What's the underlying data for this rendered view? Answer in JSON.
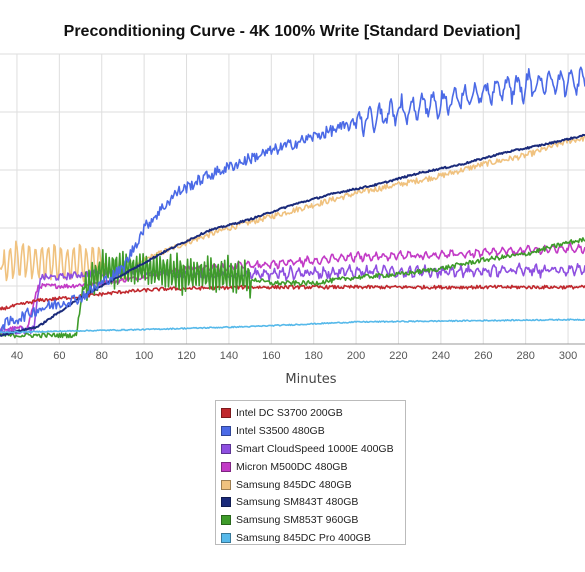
{
  "chart_data": {
    "type": "line",
    "title": "Preconditioning Curve - 4K 100% Write [Standard Deviation]",
    "xlabel": "Minutes",
    "ylabel": "",
    "xlim": [
      32,
      308
    ],
    "ylim": [
      0,
      5
    ],
    "x_ticks": [
      40,
      60,
      80,
      100,
      120,
      140,
      160,
      180,
      200,
      220,
      240,
      260,
      280,
      300
    ],
    "grid": true,
    "legend_position": "bottom",
    "series": [
      {
        "name": "Intel DC S3700 200GB",
        "color": "#c0282d",
        "points": [
          [
            32,
            0.6
          ],
          [
            50,
            0.75
          ],
          [
            70,
            0.82
          ],
          [
            90,
            0.9
          ],
          [
            110,
            0.95
          ],
          [
            150,
            0.98
          ],
          [
            200,
            0.98
          ],
          [
            250,
            0.98
          ],
          [
            300,
            0.98
          ],
          [
            308,
            0.98
          ]
        ]
      },
      {
        "name": "Intel S3500 480GB",
        "color": "#4b6ae6",
        "points": [
          [
            32,
            0.3
          ],
          [
            50,
            0.6
          ],
          [
            70,
            0.8
          ],
          [
            90,
            1.3
          ],
          [
            100,
            2.0
          ],
          [
            115,
            2.6
          ],
          [
            130,
            2.9
          ],
          [
            150,
            3.2
          ],
          [
            170,
            3.45
          ],
          [
            190,
            3.7
          ],
          [
            210,
            3.9
          ],
          [
            230,
            4.1
          ],
          [
            250,
            4.25
          ],
          [
            270,
            4.4
          ],
          [
            290,
            4.5
          ],
          [
            308,
            4.55
          ]
        ]
      },
      {
        "name": "Smart CloudSpeed 1000E 400GB",
        "color": "#8e4fe0",
        "points": [
          [
            32,
            0.2
          ],
          [
            48,
            0.25
          ],
          [
            51,
            1.15
          ],
          [
            60,
            1.15
          ],
          [
            70,
            1.2
          ],
          [
            90,
            1.25
          ],
          [
            120,
            1.2
          ],
          [
            150,
            1.2
          ],
          [
            200,
            1.25
          ],
          [
            250,
            1.25
          ],
          [
            300,
            1.28
          ],
          [
            308,
            1.3
          ]
        ]
      },
      {
        "name": "Micron M500DC 480GB",
        "color": "#c23ac6",
        "points": [
          [
            32,
            0.25
          ],
          [
            45,
            0.28
          ],
          [
            50,
            1.0
          ],
          [
            65,
            1.0
          ],
          [
            90,
            1.1
          ],
          [
            120,
            1.3
          ],
          [
            150,
            1.35
          ],
          [
            200,
            1.5
          ],
          [
            250,
            1.55
          ],
          [
            300,
            1.65
          ],
          [
            308,
            1.65
          ]
        ]
      },
      {
        "name": "Samsung 845DC 480GB",
        "color": "#f0c27f",
        "points": [
          [
            32,
            1.3
          ],
          [
            40,
            1.45
          ],
          [
            60,
            1.4
          ],
          [
            80,
            1.4
          ],
          [
            90,
            1.1
          ],
          [
            100,
            1.45
          ],
          [
            120,
            1.75
          ],
          [
            140,
            2.0
          ],
          [
            160,
            2.2
          ],
          [
            180,
            2.4
          ],
          [
            200,
            2.6
          ],
          [
            220,
            2.75
          ],
          [
            240,
            2.9
          ],
          [
            260,
            3.1
          ],
          [
            280,
            3.25
          ],
          [
            300,
            3.5
          ],
          [
            308,
            3.55
          ]
        ]
      },
      {
        "name": "Samsung SM843T 480GB",
        "color": "#1a2a7a",
        "points": [
          [
            32,
            0.15
          ],
          [
            50,
            0.3
          ],
          [
            70,
            0.8
          ],
          [
            90,
            1.2
          ],
          [
            110,
            1.6
          ],
          [
            130,
            1.95
          ],
          [
            150,
            2.15
          ],
          [
            170,
            2.4
          ],
          [
            190,
            2.6
          ],
          [
            210,
            2.75
          ],
          [
            230,
            2.95
          ],
          [
            250,
            3.1
          ],
          [
            270,
            3.3
          ],
          [
            290,
            3.45
          ],
          [
            308,
            3.6
          ]
        ]
      },
      {
        "name": "Samsung SM853T 960GB",
        "color": "#3e9b2a",
        "points": [
          [
            32,
            0.15
          ],
          [
            68,
            0.15
          ],
          [
            71,
            0.95
          ],
          [
            80,
            1.3
          ],
          [
            100,
            1.3
          ],
          [
            120,
            1.2
          ],
          [
            140,
            1.2
          ],
          [
            160,
            1.05
          ],
          [
            180,
            1.05
          ],
          [
            200,
            1.15
          ],
          [
            220,
            1.2
          ],
          [
            240,
            1.3
          ],
          [
            260,
            1.45
          ],
          [
            280,
            1.55
          ],
          [
            300,
            1.75
          ],
          [
            308,
            1.8
          ]
        ]
      },
      {
        "name": "Samsung 845DC Pro 400GB",
        "color": "#56b9ea",
        "points": [
          [
            32,
            0.2
          ],
          [
            60,
            0.22
          ],
          [
            100,
            0.25
          ],
          [
            150,
            0.3
          ],
          [
            200,
            0.38
          ],
          [
            250,
            0.4
          ],
          [
            300,
            0.42
          ],
          [
            308,
            0.42
          ]
        ]
      }
    ]
  }
}
